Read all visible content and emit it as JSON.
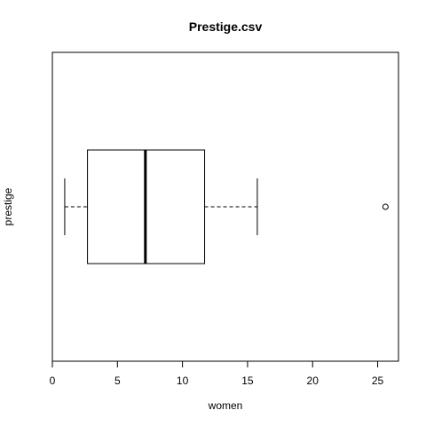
{
  "chart_data": {
    "type": "boxplot",
    "orientation": "horizontal",
    "title": "Prestige.csv",
    "xlabel": "women",
    "ylabel": "prestige",
    "xlim": [
      0,
      26.6
    ],
    "x_ticks": [
      0,
      5,
      10,
      15,
      20,
      25
    ],
    "x_tick_labels": [
      "0",
      "5",
      "10",
      "15",
      "20",
      "25"
    ],
    "box": {
      "whisker_low": 0.95,
      "q1": 2.7,
      "median": 7.15,
      "q3": 11.7,
      "whisker_high": 15.75,
      "outliers": [
        25.6
      ]
    },
    "grid": false,
    "colors": {
      "box_fill": "#ffffff",
      "stroke": "#000000",
      "background": "#ffffff"
    }
  }
}
